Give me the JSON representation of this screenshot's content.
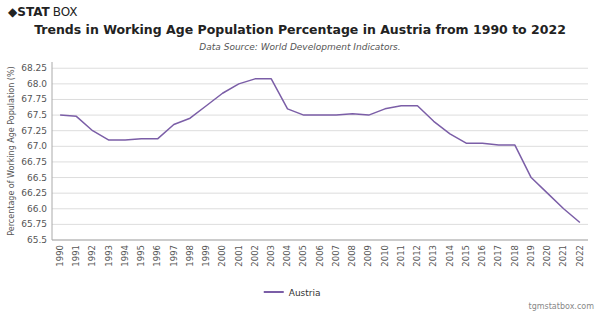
{
  "chart_data": {
    "type": "line",
    "title": "Trends in Working Age Population Percentage in Austria from 1990 to 2022",
    "subtitle": "Data Source: World Development Indicators.",
    "y_label": "Percentage of Working Age Population (%)",
    "annotations": [
      "◆",
      "STAT",
      "BOX",
      "tgmstatbox.com"
    ],
    "x": [
      1990,
      1991,
      1992,
      1993,
      1994,
      1995,
      1996,
      1997,
      1998,
      1999,
      2000,
      2001,
      2002,
      2003,
      2004,
      2005,
      2006,
      2007,
      2008,
      2009,
      2010,
      2011,
      2012,
      2013,
      2014,
      2015,
      2016,
      2017,
      2018,
      2019,
      2020,
      2021,
      2022
    ],
    "series": [
      {
        "name": "Austria",
        "color": "#7B5EA7",
        "values": [
          67.5,
          67.48,
          67.25,
          67.1,
          67.1,
          67.12,
          67.12,
          67.35,
          67.45,
          67.65,
          67.85,
          68.0,
          68.08,
          68.08,
          67.6,
          67.5,
          67.5,
          67.5,
          67.52,
          67.5,
          67.6,
          67.65,
          67.65,
          67.4,
          67.2,
          67.05,
          67.05,
          67.02,
          67.02,
          66.5,
          66.25,
          66.0,
          65.78
        ]
      }
    ],
    "xlim": [
      1989.5,
      2022.5
    ],
    "xticks": [
      1990,
      1991,
      1992,
      1993,
      1994,
      1995,
      1996,
      1997,
      1998,
      1999,
      2000,
      2001,
      2002,
      2003,
      2004,
      2005,
      2006,
      2007,
      2008,
      2009,
      2010,
      2011,
      2012,
      2013,
      2014,
      2015,
      2016,
      2017,
      2018,
      2019,
      2020,
      2021,
      2022
    ],
    "ylim": [
      65.5,
      68.35
    ],
    "yticks": [
      65.5,
      65.75,
      {
        "value": 66.0,
        "label": "66.0"
      },
      66.25,
      66.5,
      66.75,
      {
        "value": 67.0,
        "label": "67.0"
      },
      67.25,
      67.5,
      67.75,
      {
        "value": 68.0,
        "label": "68.0"
      },
      68.25
    ],
    "grid": true,
    "legend": "bottom"
  }
}
